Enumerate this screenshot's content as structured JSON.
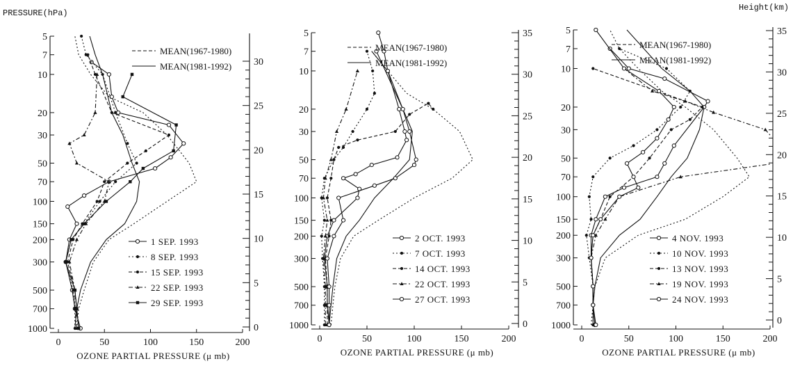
{
  "left_title": "PRESSURE(hPa)",
  "right_title": "Height(km)",
  "chart_data": [
    {
      "type": "line",
      "xlabel": "OZONE PARTIAL PRESSURE (μ mb)",
      "ylabel": "PRESSURE(hPa)",
      "y2label": "Height(km)",
      "xlim": [
        0,
        200
      ],
      "ylim": [
        1000,
        5
      ],
      "yscale": "log",
      "xticks": [
        0,
        50,
        100,
        150,
        200
      ],
      "yticks": [
        5,
        7,
        10,
        20,
        30,
        50,
        70,
        100,
        150,
        200,
        300,
        500,
        700,
        1000
      ],
      "y2ticks": [
        0,
        5,
        10,
        15,
        20,
        25,
        30
      ],
      "legend_mean": [
        "MEAN(1967-1980)",
        "MEAN(1981-1992)"
      ],
      "legend_dates": [
        "1 SEP. 1993",
        "8 SEP. 1993",
        "15 SEP. 1993",
        "22 SEP. 1993",
        "29 SEP. 1993"
      ],
      "series": [
        {
          "name": "MEAN(1967-1980)",
          "style": "dotted",
          "x": [
            20,
            22,
            28,
            38,
            55,
            82,
            118,
            150,
            142,
            118,
            92,
            55,
            35,
            22,
            18
          ],
          "y": [
            1000,
            700,
            500,
            300,
            200,
            150,
            100,
            70,
            50,
            30,
            20,
            15,
            10,
            7,
            5
          ]
        },
        {
          "name": "MEAN(1981-1992)",
          "style": "solid",
          "x": [
            18,
            20,
            24,
            35,
            52,
            72,
            85,
            88,
            80,
            70,
            58,
            48,
            40,
            34
          ],
          "y": [
            1000,
            700,
            500,
            300,
            200,
            150,
            100,
            70,
            50,
            30,
            20,
            10,
            7,
            5
          ]
        },
        {
          "name": "1 SEP. 1993",
          "style": "solid-circle",
          "x": [
            24,
            18,
            15,
            8,
            12,
            20,
            10,
            28,
            55,
            105,
            122,
            136,
            120,
            65,
            58,
            55,
            36
          ],
          "y": [
            1000,
            700,
            500,
            300,
            200,
            150,
            110,
            90,
            70,
            55,
            45,
            35,
            25,
            20,
            15,
            10,
            8
          ]
        },
        {
          "name": "8 SEP. 1993",
          "style": "dotted-dot",
          "x": [
            18,
            18,
            16,
            8,
            14,
            28,
            45,
            62,
            85,
            75,
            62,
            48,
            30,
            25
          ],
          "y": [
            1000,
            700,
            500,
            300,
            200,
            150,
            100,
            70,
            50,
            35,
            20,
            10,
            7,
            5
          ]
        },
        {
          "name": "15 SEP. 1993",
          "style": "dashed-dot",
          "x": [
            22,
            20,
            18,
            10,
            16,
            26,
            42,
            50,
            75,
            95,
            120,
            58,
            40,
            32
          ],
          "y": [
            1000,
            700,
            500,
            300,
            200,
            150,
            100,
            70,
            50,
            40,
            30,
            20,
            10,
            7
          ]
        },
        {
          "name": "22 SEP. 1993",
          "style": "dashdot-triangle",
          "x": [
            20,
            18,
            18,
            12,
            20,
            30,
            50,
            55,
            20,
            12,
            28,
            40,
            42
          ],
          "y": [
            1000,
            700,
            500,
            300,
            200,
            150,
            100,
            70,
            50,
            35,
            30,
            20,
            10
          ]
        },
        {
          "name": "29 SEP. 1993",
          "style": "solid-square",
          "x": [
            22,
            20,
            18,
            8,
            14,
            28,
            52,
            78,
            92,
            125,
            128,
            70,
            80
          ],
          "y": [
            1000,
            700,
            500,
            300,
            200,
            150,
            100,
            70,
            55,
            40,
            25,
            15,
            10
          ]
        }
      ]
    },
    {
      "type": "line",
      "xlabel": "OZONE PARTIAL PRESSURE (μ mb)",
      "xlim": [
        0,
        200
      ],
      "ylim": [
        1000,
        5
      ],
      "yscale": "log",
      "xticks": [
        0,
        50,
        100,
        150,
        200
      ],
      "yticks": [
        5,
        7,
        10,
        20,
        30,
        50,
        70,
        100,
        150,
        200,
        300,
        500,
        700,
        1000
      ],
      "y2ticks": [
        0,
        5,
        10,
        15,
        20,
        25,
        30,
        35
      ],
      "legend_mean": [
        "MEAN(1967-1980)",
        "MEAN(1981-1992)"
      ],
      "legend_dates": [
        "2 OCT. 1993",
        "7 OCT. 1993",
        "14 OCT. 1993",
        "22 OCT. 1993",
        "27 OCT. 1993"
      ],
      "series": [
        {
          "name": "MEAN(1967-1980)",
          "style": "dotted",
          "x": [
            12,
            14,
            16,
            22,
            36,
            62,
            100,
            140,
            162,
            148,
            120,
            92,
            72,
            55
          ],
          "y": [
            1000,
            700,
            500,
            300,
            200,
            150,
            100,
            70,
            50,
            30,
            20,
            15,
            10,
            7
          ]
        },
        {
          "name": "MEAN(1981-1992)",
          "style": "solid",
          "x": [
            10,
            12,
            14,
            18,
            28,
            42,
            58,
            78,
            95,
            98,
            88,
            72,
            55
          ],
          "y": [
            1000,
            700,
            500,
            300,
            200,
            150,
            100,
            70,
            50,
            30,
            20,
            10,
            7
          ]
        },
        {
          "name": "2 OCT. 1993",
          "style": "solid-circle",
          "x": [
            10,
            8,
            8,
            5,
            8,
            15,
            40,
            42,
            25,
            38,
            55,
            82,
            92,
            90,
            84,
            72,
            68,
            62
          ],
          "y": [
            1000,
            700,
            500,
            300,
            200,
            150,
            100,
            85,
            70,
            65,
            55,
            48,
            35,
            30,
            20,
            10,
            7,
            5
          ]
        },
        {
          "name": "7 OCT. 1993",
          "style": "dotted-dot",
          "x": [
            5,
            5,
            5,
            3,
            2,
            5,
            2,
            5,
            15,
            25,
            35,
            50,
            58,
            56,
            50
          ],
          "y": [
            1000,
            700,
            500,
            300,
            200,
            150,
            100,
            70,
            50,
            40,
            30,
            20,
            15,
            10,
            7
          ]
        },
        {
          "name": "14 OCT. 1993",
          "style": "dashed-dot",
          "x": [
            8,
            8,
            8,
            6,
            10,
            12,
            8,
            12,
            15,
            20,
            40,
            80,
            95,
            115,
            120
          ],
          "y": [
            1000,
            700,
            500,
            300,
            200,
            150,
            100,
            70,
            50,
            40,
            35,
            30,
            22,
            18,
            20
          ]
        },
        {
          "name": "22 OCT. 1993",
          "style": "dashdot-triangle",
          "x": [
            6,
            6,
            6,
            4,
            6,
            8,
            4,
            6,
            12,
            18,
            28,
            40
          ],
          "y": [
            1000,
            700,
            500,
            300,
            200,
            150,
            100,
            70,
            50,
            30,
            20,
            10
          ]
        },
        {
          "name": "27 OCT. 1993",
          "style": "solid-circle-open",
          "x": [
            10,
            10,
            10,
            8,
            15,
            25,
            20,
            58,
            80,
            100,
            102,
            95,
            88,
            60
          ],
          "y": [
            1000,
            700,
            500,
            300,
            200,
            150,
            100,
            80,
            70,
            55,
            50,
            30,
            20,
            7
          ]
        }
      ]
    },
    {
      "type": "line",
      "xlabel": "OZONE PARTIAL PRESSURE (μ mb)",
      "xlim": [
        0,
        200
      ],
      "ylim": [
        1000,
        5
      ],
      "yscale": "log",
      "xticks": [
        0,
        50,
        100,
        150,
        200
      ],
      "yticks": [
        5,
        7,
        10,
        20,
        30,
        50,
        70,
        100,
        150,
        200,
        300,
        500,
        700,
        1000
      ],
      "y2ticks": [
        0,
        5,
        10,
        15,
        20,
        25,
        30,
        35
      ],
      "legend_mean": [
        "MEAN(1967-1980)",
        "MEAN(1981-1992)"
      ],
      "legend_dates": [
        "4 NOV. 1993",
        "10 NOV. 1993",
        "13 NOV. 1993",
        "19 NOV. 1993",
        "24 NOV. 1993"
      ],
      "series": [
        {
          "name": "MEAN(1967-1980)",
          "style": "dotted",
          "x": [
            10,
            12,
            14,
            25,
            60,
            110,
            150,
            178,
            165,
            140,
            110,
            85,
            60,
            40,
            30
          ],
          "y": [
            1000,
            700,
            500,
            300,
            200,
            150,
            100,
            70,
            50,
            30,
            20,
            15,
            10,
            7,
            5
          ]
        },
        {
          "name": "MEAN(1981-1992)",
          "style": "solid",
          "x": [
            12,
            12,
            14,
            20,
            40,
            62,
            80,
            95,
            112,
            125,
            130,
            115,
            85,
            48
          ],
          "y": [
            1000,
            700,
            500,
            300,
            200,
            150,
            100,
            70,
            50,
            30,
            20,
            15,
            10,
            5
          ]
        },
        {
          "name": "4 NOV. 1993",
          "style": "solid-circle",
          "x": [
            14,
            12,
            12,
            10,
            10,
            15,
            25,
            45,
            80,
            88,
            98,
            130,
            134,
            88,
            50,
            30
          ],
          "y": [
            1000,
            700,
            500,
            300,
            200,
            150,
            100,
            85,
            70,
            55,
            40,
            20,
            18,
            12,
            10,
            7
          ]
        },
        {
          "name": "10 NOV. 1993",
          "style": "dotted-dot",
          "x": [
            12,
            12,
            12,
            8,
            5,
            10,
            8,
            12,
            30,
            55,
            80,
            105,
            115,
            90,
            40
          ],
          "y": [
            1000,
            700,
            500,
            300,
            200,
            150,
            100,
            70,
            50,
            40,
            30,
            20,
            15,
            10,
            7
          ]
        },
        {
          "name": "13 NOV. 1993",
          "style": "dashed-dot",
          "x": [
            14,
            12,
            12,
            10,
            12,
            20,
            30,
            55,
            72,
            95,
            115,
            128,
            12
          ],
          "y": [
            1000,
            700,
            500,
            300,
            200,
            150,
            100,
            70,
            50,
            30,
            25,
            20,
            10
          ]
        },
        {
          "name": "19 NOV. 1993",
          "style": "dashdot-triangle",
          "x": [
            14,
            12,
            12,
            10,
            15,
            25,
            40,
            105,
            205,
            210,
            195,
            140,
            110,
            75,
            45
          ],
          "y": [
            1000,
            700,
            500,
            300,
            200,
            150,
            100,
            70,
            55,
            40,
            30,
            22,
            18,
            15,
            10
          ]
        },
        {
          "name": "24 NOV. 1993",
          "style": "solid-circle-open",
          "x": [
            15,
            12,
            12,
            10,
            12,
            20,
            40,
            60,
            55,
            48,
            65,
            80,
            92,
            98,
            82,
            45,
            15
          ],
          "y": [
            1000,
            700,
            500,
            300,
            200,
            150,
            100,
            85,
            70,
            55,
            45,
            35,
            25,
            20,
            15,
            10,
            5
          ]
        }
      ]
    }
  ]
}
